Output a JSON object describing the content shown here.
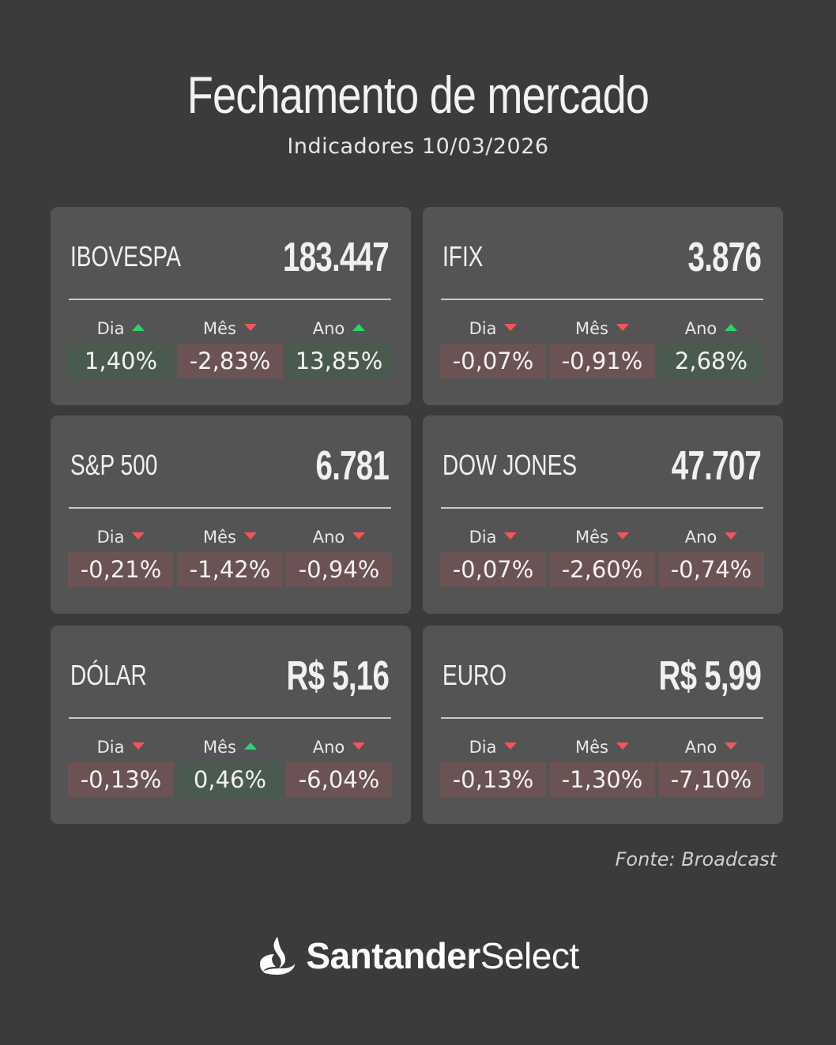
{
  "header": {
    "title": "Fechamento de mercado",
    "subtitle": "Indicadores 10/03/2026"
  },
  "labels": {
    "dia": "Dia",
    "mes": "Mês",
    "ano": "Ano"
  },
  "cards": [
    {
      "name": "IBOVESPA",
      "value": "183.447",
      "dia": {
        "pct": "1,40%",
        "trend": "up"
      },
      "mes": {
        "pct": "-2,83%",
        "trend": "down"
      },
      "ano": {
        "pct": "13,85%",
        "trend": "up"
      }
    },
    {
      "name": "IFIX",
      "value": "3.876",
      "dia": {
        "pct": "-0,07%",
        "trend": "down"
      },
      "mes": {
        "pct": "-0,91%",
        "trend": "down"
      },
      "ano": {
        "pct": "2,68%",
        "trend": "up"
      }
    },
    {
      "name": "S&P 500",
      "value": "6.781",
      "dia": {
        "pct": "-0,21%",
        "trend": "down"
      },
      "mes": {
        "pct": "-1,42%",
        "trend": "down"
      },
      "ano": {
        "pct": "-0,94%",
        "trend": "down"
      }
    },
    {
      "name": "DOW JONES",
      "value": "47.707",
      "dia": {
        "pct": "-0,07%",
        "trend": "down"
      },
      "mes": {
        "pct": "-2,60%",
        "trend": "down"
      },
      "ano": {
        "pct": "-0,74%",
        "trend": "down"
      }
    },
    {
      "name": "DÓLAR",
      "value": "R$ 5,16",
      "dia": {
        "pct": "-0,13%",
        "trend": "down"
      },
      "mes": {
        "pct": "0,46%",
        "trend": "up"
      },
      "ano": {
        "pct": "-6,04%",
        "trend": "down"
      }
    },
    {
      "name": "EURO",
      "value": "R$ 5,99",
      "dia": {
        "pct": "-0,13%",
        "trend": "down"
      },
      "mes": {
        "pct": "-1,30%",
        "trend": "down"
      },
      "ano": {
        "pct": "-7,10%",
        "trend": "down"
      }
    }
  ],
  "source": "Fonte: Broadcast",
  "brand": {
    "bold": "Santander",
    "light": "Select",
    "icon": "santander-flame-icon"
  },
  "colors": {
    "up": "#2bd46a",
    "down": "#f0565b",
    "pos_bg": "#4a5a4f",
    "neg_bg": "#6b5354"
  }
}
